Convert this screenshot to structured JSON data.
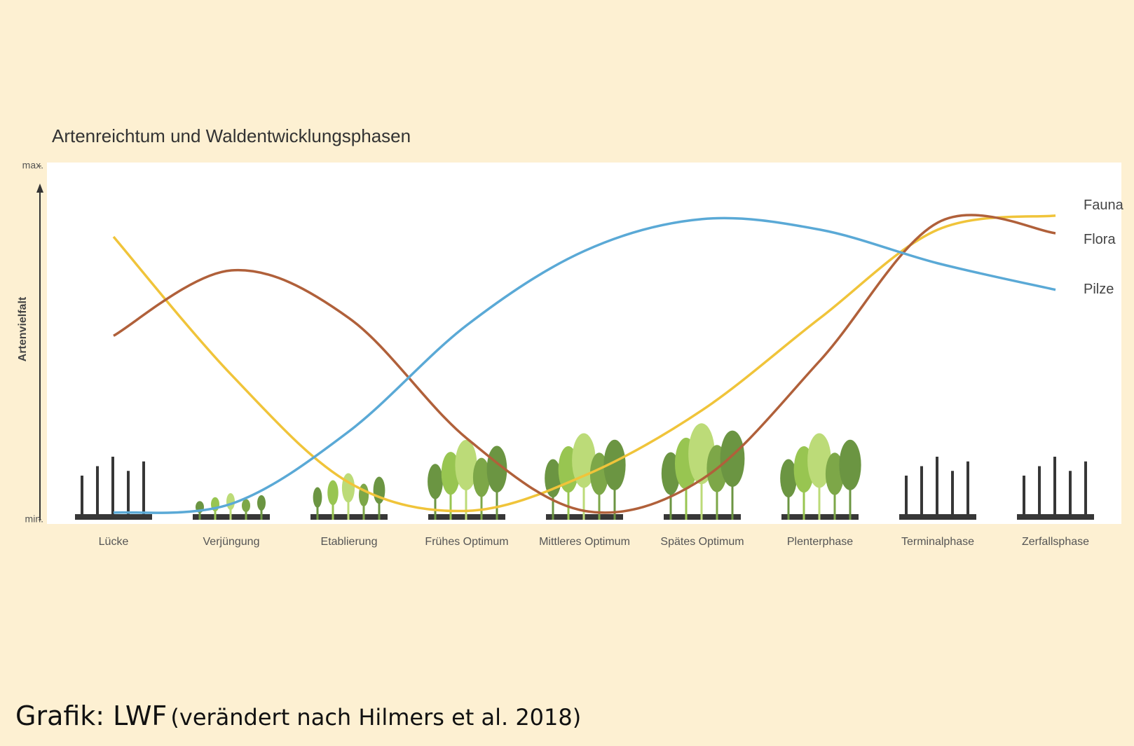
{
  "chart_data": {
    "type": "line",
    "title": "Artenreichtum und Waldentwicklungsphasen",
    "y_label": "Artenvielfalt",
    "categories": [
      "Lücke",
      "Verjüngung",
      "Etablierung",
      "Frühes Optimum",
      "Mittleres Optimum",
      "Spätes Optimum",
      "Plenterphase",
      "Terminalphase",
      "Zerfallsphase"
    ],
    "ylim": [
      0,
      100
    ],
    "yticks": [
      {
        "value": 0,
        "label": "min."
      },
      {
        "value": 100,
        "label": "max."
      }
    ],
    "series": [
      {
        "name": "Fauna",
        "color": "#f0c43a",
        "values": [
          80,
          41,
          10.5,
          2.5,
          12.5,
          31,
          57,
          82,
          86
        ]
      },
      {
        "name": "Flora",
        "color": "#b0603a",
        "values": [
          52,
          70.5,
          57,
          23,
          2.5,
          11.5,
          45,
          84,
          81
        ]
      },
      {
        "name": "Pilze",
        "color": "#5aa9d6",
        "values": [
          2,
          4.5,
          25,
          55,
          76,
          85,
          82,
          72.5,
          65
        ]
      }
    ]
  },
  "caption": {
    "source": "Grafik: LWF",
    "note": "(verändert nach Hilmers et al. 2018)"
  }
}
